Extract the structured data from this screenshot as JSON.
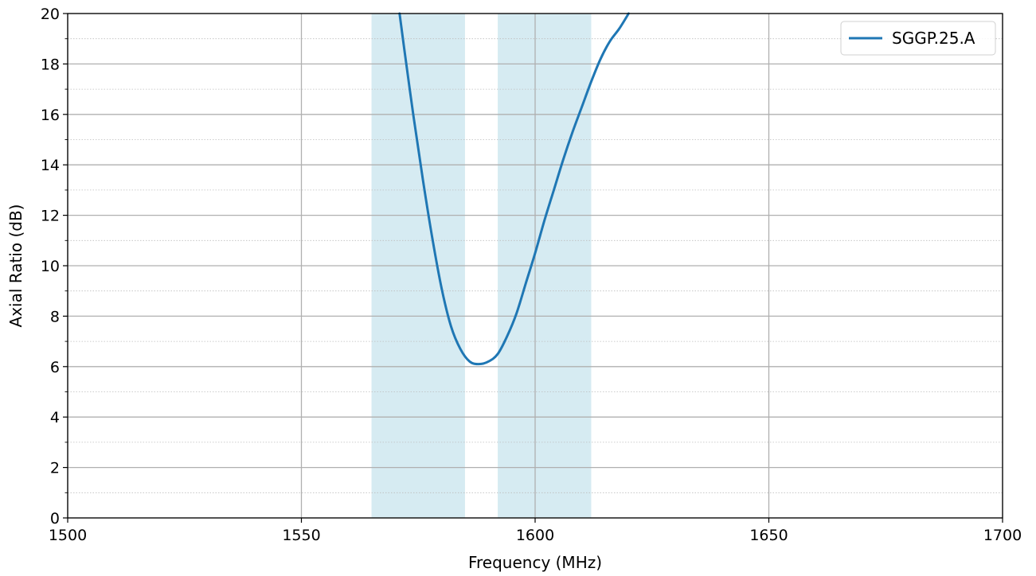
{
  "chart_data": {
    "type": "line",
    "title": "",
    "xlabel": "Frequency (MHz)",
    "ylabel": "Axial Ratio (dB)",
    "xlim": [
      1500,
      1700
    ],
    "ylim": [
      0,
      20
    ],
    "x_ticks": [
      1500,
      1550,
      1600,
      1650,
      1700
    ],
    "y_ticks": [
      0,
      2,
      4,
      6,
      8,
      10,
      12,
      14,
      16,
      18,
      20
    ],
    "y_minor_ticks": [
      1,
      3,
      5,
      7,
      9,
      11,
      13,
      15,
      17,
      19
    ],
    "grid": {
      "major": true,
      "minor_y_dotted": true
    },
    "legend_position": "top-right",
    "shaded_bands": [
      {
        "x_start": 1565,
        "x_end": 1585,
        "color": "#add8e6"
      },
      {
        "x_start": 1592,
        "x_end": 1612,
        "color": "#add8e6"
      }
    ],
    "series": [
      {
        "name": "SGGP.25.A",
        "color": "#1f77b4",
        "x": [
          1571,
          1572,
          1574,
          1576,
          1578,
          1580,
          1582,
          1584,
          1586,
          1588,
          1590,
          1592,
          1594,
          1596,
          1598,
          1600,
          1602,
          1604,
          1606,
          1608,
          1610,
          1612,
          1614,
          1616,
          1618,
          1620
        ],
        "y": [
          20.0,
          18.6,
          15.9,
          13.4,
          11.1,
          9.1,
          7.6,
          6.7,
          6.2,
          6.1,
          6.2,
          6.5,
          7.2,
          8.1,
          9.3,
          10.5,
          11.8,
          13.0,
          14.2,
          15.3,
          16.3,
          17.3,
          18.2,
          18.9,
          19.4,
          20.0
        ]
      }
    ]
  }
}
